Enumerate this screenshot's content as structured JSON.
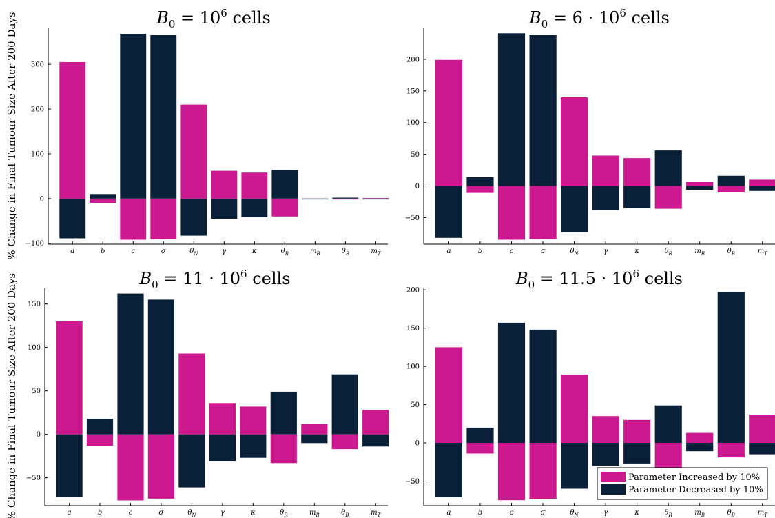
{
  "colors": {
    "increased": "#cc198f",
    "decreased": "#0a1f38",
    "axis": "#000000"
  },
  "legend": {
    "placement": "bottom-right",
    "increased_label": "Parameter Increased by 10%",
    "decreased_label": "Parameter Decreased by 10%"
  },
  "chart_data": [
    {
      "type": "bar",
      "title": "B_0 = 10^6 cells",
      "title_parts": {
        "main": "B",
        "sub": "0",
        "eq": " = 10",
        "sup": "6",
        "tail": " cells"
      },
      "ylabel": "% Change in Final Tumour Size After 200 Days",
      "categories": [
        "a",
        "b",
        "c",
        "σ",
        "θ_N",
        "γ",
        "κ",
        "θ_R",
        "m_B",
        "θ_B",
        "m_T"
      ],
      "ylim": [
        -102,
        382
      ],
      "yticks": [
        -100,
        0,
        100,
        200,
        300
      ],
      "ytick_labels": [
        "−100",
        "0",
        "100",
        "200",
        "300"
      ],
      "series": [
        {
          "name": "Parameter Increased by 10%",
          "values": [
            305,
            -10,
            -92,
            -91,
            210,
            62,
            58,
            -40,
            -1,
            -2,
            1
          ]
        },
        {
          "name": "Parameter Decreased by 10%",
          "values": [
            -89,
            10,
            368,
            365,
            -83,
            -45,
            -42,
            64,
            -2,
            2,
            -2
          ]
        }
      ]
    },
    {
      "type": "bar",
      "title": "B_0 = 6 · 10^6 cells",
      "title_parts": {
        "main": "B",
        "sub": "0",
        "eq": " = 6 · 10",
        "sup": "6",
        "tail": " cells"
      },
      "ylabel": "",
      "categories": [
        "a",
        "b",
        "c",
        "σ",
        "θ_N",
        "γ",
        "κ",
        "θ_R",
        "m_B",
        "θ_B",
        "m_T"
      ],
      "ylim": [
        -92,
        250
      ],
      "yticks": [
        -50,
        0,
        50,
        100,
        150,
        200
      ],
      "ytick_labels": [
        "−50",
        "0",
        "50",
        "100",
        "150",
        "200"
      ],
      "series": [
        {
          "name": "Parameter Increased by 10%",
          "values": [
            199,
            -11,
            -85,
            -84,
            140,
            48,
            44,
            -36,
            6,
            -10,
            10
          ]
        },
        {
          "name": "Parameter Decreased by 10%",
          "values": [
            -82,
            14,
            241,
            238,
            -73,
            -38,
            -35,
            56,
            -6,
            16,
            -8
          ]
        }
      ]
    },
    {
      "type": "bar",
      "title": "B_0 = 11 · 10^6 cells",
      "title_parts": {
        "main": "B",
        "sub": "0",
        "eq": " = 11 · 10",
        "sup": "6",
        "tail": " cells"
      },
      "ylabel": "% Change in Final Tumour Size After 200 Days",
      "categories": [
        "a",
        "b",
        "c",
        "σ",
        "θ_N",
        "γ",
        "κ",
        "θ_R",
        "m_B",
        "θ_B",
        "m_T"
      ],
      "ylim": [
        -82,
        168
      ],
      "yticks": [
        -50,
        0,
        50,
        100,
        150
      ],
      "ytick_labels": [
        "−50",
        "0",
        "50",
        "100",
        "150"
      ],
      "series": [
        {
          "name": "Parameter Increased by 10%",
          "values": [
            130,
            -13,
            -76,
            -74,
            93,
            36,
            32,
            -33,
            12,
            -17,
            28
          ]
        },
        {
          "name": "Parameter Decreased by 10%",
          "values": [
            -72,
            18,
            162,
            155,
            -61,
            -31,
            -27,
            49,
            -10,
            69,
            -14
          ]
        }
      ]
    },
    {
      "type": "bar",
      "title": "B_0 = 11.5 · 10^6 cells",
      "title_parts": {
        "main": "B",
        "sub": "0",
        "eq": " = 11.5 · 10",
        "sup": "6",
        "tail": " cells"
      },
      "ylabel": "",
      "categories": [
        "a",
        "b",
        "c",
        "σ",
        "θ_N",
        "γ",
        "κ",
        "θ_R",
        "m_B",
        "θ_B",
        "m_T"
      ],
      "ylim": [
        -82,
        202
      ],
      "yticks": [
        -50,
        0,
        50,
        100,
        150,
        200
      ],
      "ytick_labels": [
        "−50",
        "0",
        "50",
        "100",
        "150",
        "200"
      ],
      "series": [
        {
          "name": "Parameter Increased by 10%",
          "values": [
            125,
            -14,
            -75,
            -73,
            89,
            35,
            30,
            -32,
            13,
            -19,
            37
          ]
        },
        {
          "name": "Parameter Decreased by 10%",
          "values": [
            -71,
            20,
            157,
            148,
            -60,
            -30,
            -27,
            49,
            -11,
            197,
            -15
          ]
        }
      ]
    }
  ]
}
